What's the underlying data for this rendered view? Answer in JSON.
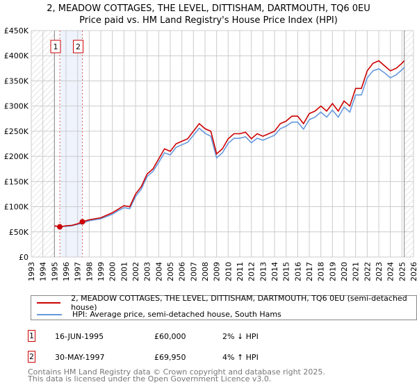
{
  "title": {
    "line1": "2, MEADOW COTTAGES, THE LEVEL, DITTISHAM, DARTMOUTH, TQ6 0EU",
    "line2": "Price paid vs. HM Land Registry's House Price Index (HPI)"
  },
  "chart_data": {
    "type": "line",
    "xlim": [
      1993,
      2026
    ],
    "ylim": [
      0,
      450000
    ],
    "x_ticks": [
      "1993",
      "1994",
      "1995",
      "1996",
      "1997",
      "1998",
      "1999",
      "2000",
      "2001",
      "2002",
      "2003",
      "2004",
      "2005",
      "2006",
      "2007",
      "2008",
      "2009",
      "2010",
      "2011",
      "2012",
      "2013",
      "2014",
      "2015",
      "2016",
      "2017",
      "2018",
      "2019",
      "2020",
      "2021",
      "2022",
      "2023",
      "2024",
      "2025",
      "2026"
    ],
    "y_ticks": [
      {
        "v": 0,
        "label": "£0"
      },
      {
        "v": 50000,
        "label": "£50K"
      },
      {
        "v": 100000,
        "label": "£100K"
      },
      {
        "v": 150000,
        "label": "£150K"
      },
      {
        "v": 200000,
        "label": "£200K"
      },
      {
        "v": 250000,
        "label": "£250K"
      },
      {
        "v": 300000,
        "label": "£300K"
      },
      {
        "v": 350000,
        "label": "£350K"
      },
      {
        "v": 400000,
        "label": "£400K"
      },
      {
        "v": 450000,
        "label": "£450K"
      }
    ],
    "hatched_before": 1995.0,
    "hatched_after": 2025.2,
    "shaded_range": [
      1995.46,
      1997.41
    ],
    "x": [
      1995.0,
      1995.5,
      1996,
      1996.5,
      1997,
      1997.4,
      1998,
      1999,
      2000,
      2000.5,
      2001,
      2001.5,
      2002,
      2002.5,
      2003,
      2003.5,
      2004,
      2004.5,
      2005,
      2005.5,
      2006,
      2006.5,
      2007,
      2007.5,
      2008,
      2008.5,
      2009,
      2009.5,
      2010,
      2010.5,
      2011,
      2011.5,
      2012,
      2012.5,
      2013,
      2013.5,
      2014,
      2014.5,
      2015,
      2015.5,
      2016,
      2016.5,
      2017,
      2017.5,
      2018,
      2018.5,
      2019,
      2019.5,
      2020,
      2020.5,
      2021,
      2021.5,
      2022,
      2022.5,
      2023,
      2023.5,
      2024,
      2024.5,
      2025,
      2025.2
    ],
    "series": [
      {
        "name": "2, MEADOW COTTAGES, THE LEVEL, DITTISHAM, DARTMOUTH, TQ6 0EU (semi-detached house)",
        "color": "#cc0000",
        "values": [
          62000,
          60000,
          62000,
          63000,
          66000,
          70000,
          74000,
          78000,
          88000,
          95000,
          102000,
          100000,
          125000,
          140000,
          165000,
          175000,
          195000,
          215000,
          210000,
          225000,
          230000,
          235000,
          250000,
          265000,
          255000,
          250000,
          205000,
          215000,
          235000,
          245000,
          245000,
          248000,
          235000,
          245000,
          240000,
          245000,
          250000,
          265000,
          270000,
          280000,
          280000,
          265000,
          285000,
          290000,
          300000,
          290000,
          305000,
          290000,
          310000,
          300000,
          335000,
          335000,
          370000,
          385000,
          390000,
          380000,
          370000,
          375000,
          385000,
          390000
        ]
      },
      {
        "name": "HPI: Average price, semi-detached house, South Hams",
        "color": "#6699dd",
        "values": [
          61000,
          61000,
          61000,
          62000,
          65000,
          67000,
          72000,
          76000,
          85000,
          92000,
          98000,
          96000,
          120000,
          135000,
          160000,
          170000,
          188000,
          207000,
          203000,
          218000,
          223000,
          228000,
          242000,
          256000,
          246000,
          240000,
          197000,
          207000,
          226000,
          236000,
          236000,
          239000,
          227000,
          236000,
          232000,
          237000,
          242000,
          255000,
          260000,
          268000,
          268000,
          254000,
          273000,
          278000,
          288000,
          278000,
          292000,
          278000,
          298000,
          288000,
          322000,
          322000,
          356000,
          370000,
          374000,
          366000,
          356000,
          362000,
          372000,
          377000
        ]
      }
    ],
    "sales": [
      {
        "id": "1",
        "x": 1995.46,
        "price": 60000
      },
      {
        "id": "2",
        "x": 1997.41,
        "price": 69950
      }
    ]
  },
  "legend": {
    "red": "2, MEADOW COTTAGES, THE LEVEL, DITTISHAM, DARTMOUTH, TQ6 0EU (semi-detached house)",
    "blue": "HPI: Average price, semi-detached house, South Hams"
  },
  "transactions": [
    {
      "id": "1",
      "date": "16-JUN-1995",
      "price": "£60,000",
      "hpi": "2% ↓ HPI"
    },
    {
      "id": "2",
      "date": "30-MAY-1997",
      "price": "£69,950",
      "hpi": "4% ↑ HPI"
    }
  ],
  "footer": {
    "line1": "Contains HM Land Registry data © Crown copyright and database right 2025.",
    "line2": "This data is licensed under the Open Government Licence v3.0."
  }
}
